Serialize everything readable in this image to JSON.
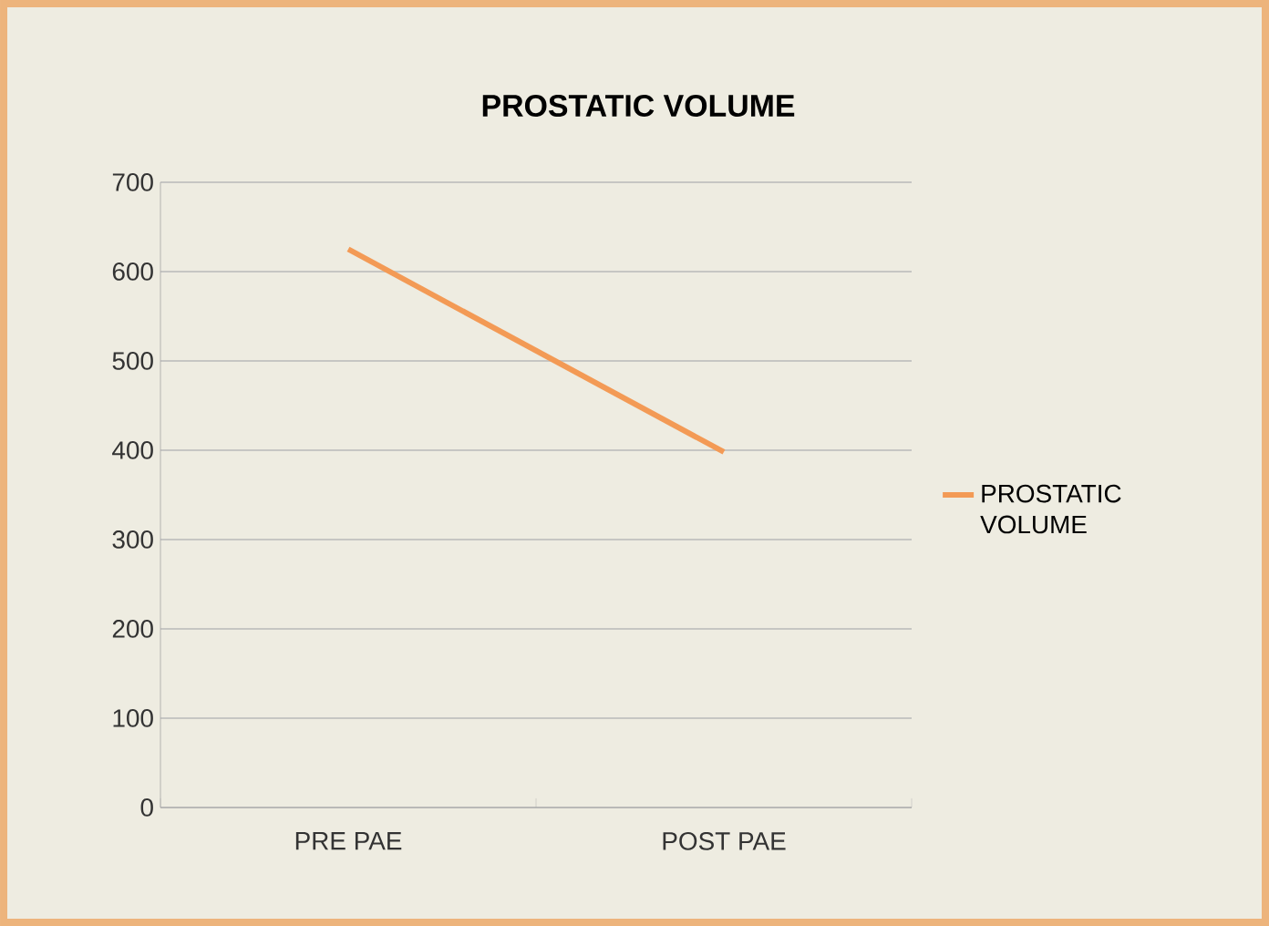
{
  "chart_data": {
    "type": "line",
    "title": "PROSTATIC VOLUME",
    "categories": [
      "PRE PAE",
      "POST PAE"
    ],
    "series": [
      {
        "name": "PROSTATIC VOLUME",
        "color": "#f39a55",
        "values": [
          625,
          398
        ]
      }
    ],
    "ylim": [
      0,
      700
    ],
    "yticks": [
      0,
      100,
      200,
      300,
      400,
      500,
      600,
      700
    ],
    "grid": "y",
    "legend": "right",
    "marker": "none",
    "line_style": "solid"
  }
}
